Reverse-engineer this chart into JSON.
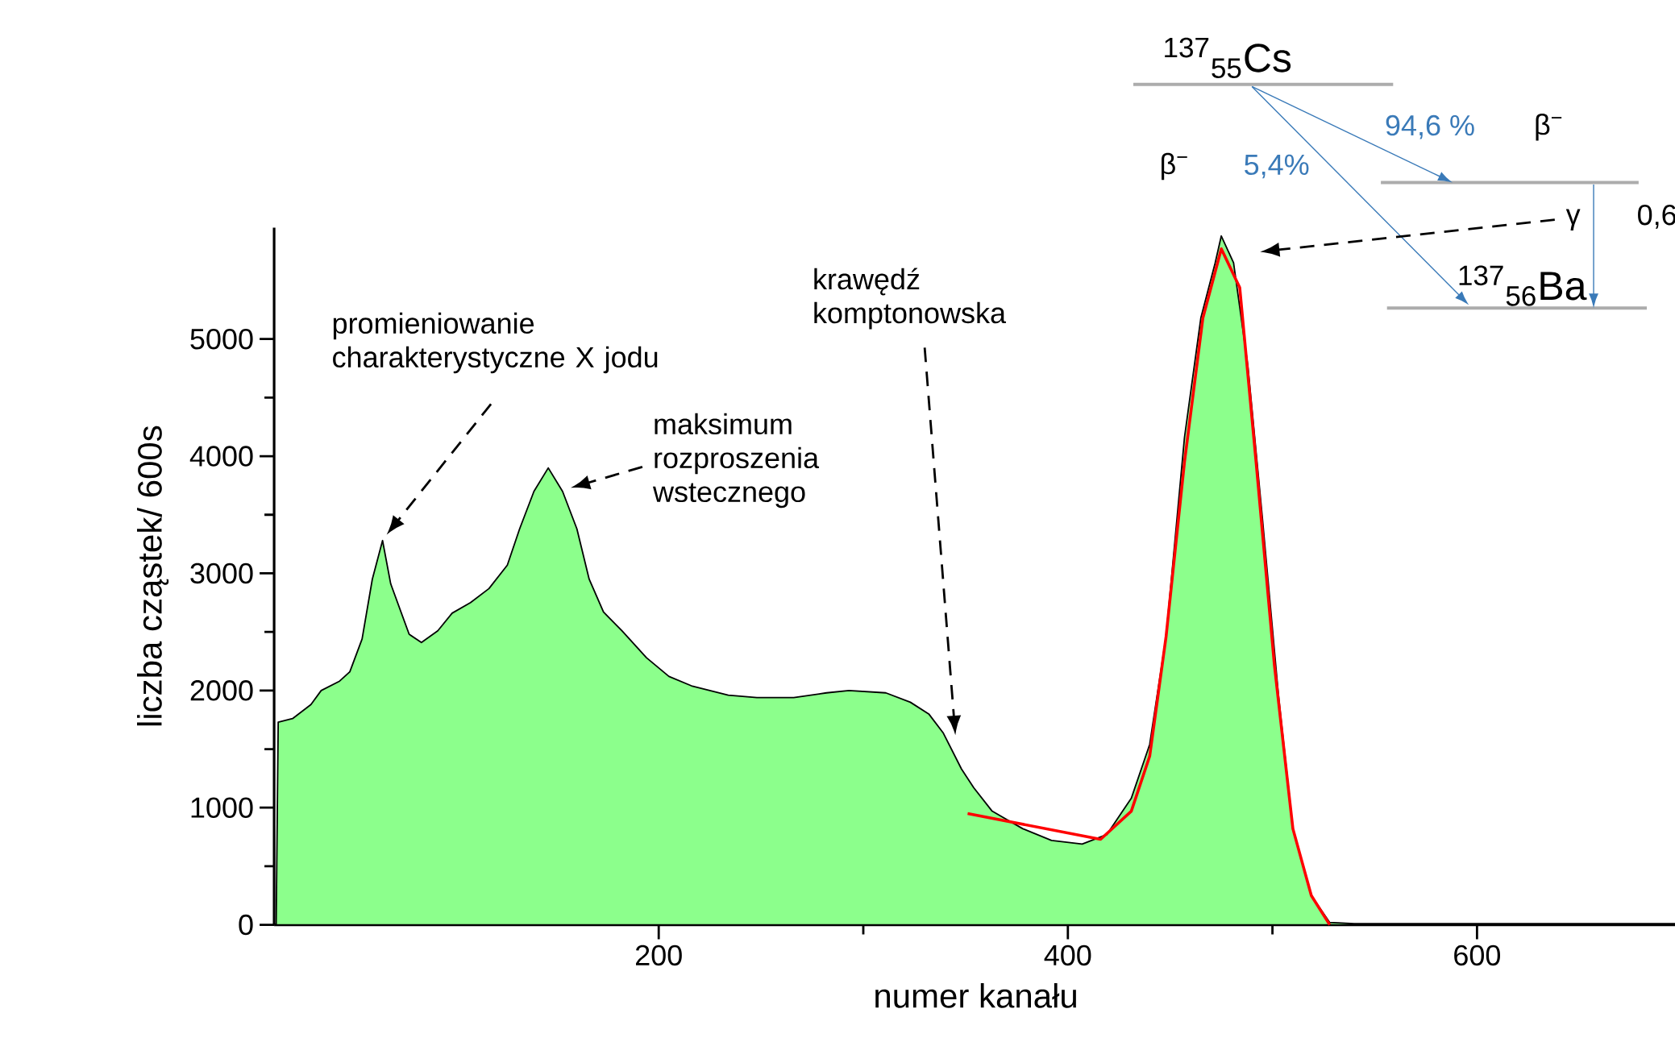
{
  "chart_data": {
    "type": "area",
    "xlabel": "numer kanału",
    "ylabel": "liczba cząstek/ 600s",
    "xlim": [
      12,
      698
    ],
    "ylim": [
      0,
      5950
    ],
    "xticks": [
      200,
      400,
      600
    ],
    "yticks": [
      0,
      1000,
      2000,
      3000,
      4000,
      5000
    ],
    "series": [
      {
        "color": "#8cff8c",
        "x": [
          13,
          14,
          21,
          30,
          35,
          44,
          49,
          55,
          60,
          65,
          69,
          78,
          84,
          92,
          99,
          108,
          117,
          126,
          132,
          139,
          146,
          153,
          160,
          166,
          173,
          182,
          194,
          205,
          216,
          234,
          248,
          266,
          282,
          293,
          311,
          323,
          332,
          339,
          348,
          354,
          363,
          378,
          392,
          407,
          419,
          431,
          440,
          448,
          457,
          465,
          472,
          475,
          481,
          488,
          495,
          503,
          510,
          519,
          528,
          540,
          600,
          698
        ],
        "values": [
          0,
          1730,
          1760,
          1880,
          2000,
          2080,
          2160,
          2440,
          2950,
          3280,
          2910,
          2480,
          2410,
          2510,
          2660,
          2750,
          2870,
          3070,
          3380,
          3700,
          3900,
          3700,
          3380,
          2950,
          2670,
          2510,
          2280,
          2120,
          2040,
          1960,
          1940,
          1940,
          1980,
          2000,
          1980,
          1900,
          1800,
          1640,
          1330,
          1170,
          970,
          820,
          720,
          690,
          770,
          1080,
          1540,
          2460,
          4160,
          5180,
          5650,
          5880,
          5650,
          4770,
          3490,
          1950,
          820,
          250,
          20,
          10,
          10,
          10
        ]
      },
      {
        "type": "line",
        "color": "#ff0000",
        "x": [
          351,
          416,
          431,
          440,
          448,
          457,
          466,
          475,
          484,
          492,
          501,
          510,
          519,
          528
        ],
        "values": [
          950,
          730,
          970,
          1440,
          2460,
          3950,
          5180,
          5770,
          5440,
          3950,
          2210,
          820,
          250,
          0
        ]
      }
    ],
    "annotations": [
      "promieniowanie charakterystyczne X jodu",
      "maksimum rozproszenia wstecznego",
      "krawędź komptonowska",
      "$^{137}$$_{55}$Cs",
      "94,6 %",
      "β$^{−}$",
      "β$^{−}$",
      "5,4%",
      "γ",
      "0,6",
      "$^{137}$$_{56}$Ba"
    ]
  }
}
